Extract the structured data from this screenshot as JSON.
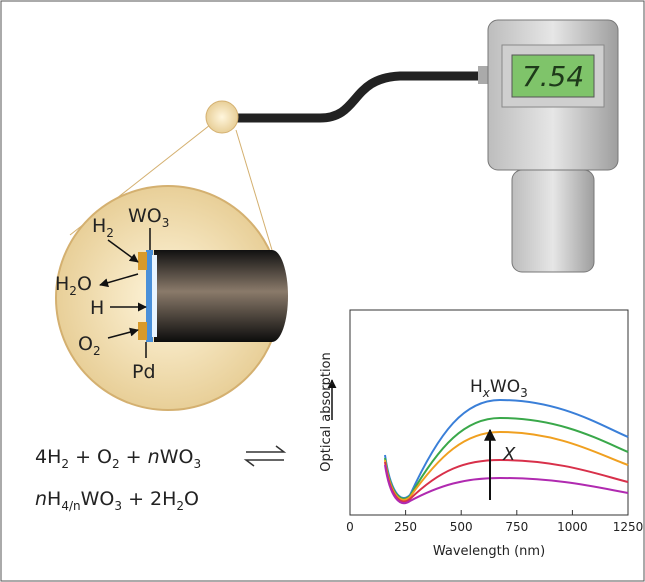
{
  "meter": {
    "reading": "7.54"
  },
  "sensor_labels": {
    "h2": [
      "H",
      "2"
    ],
    "wo3": [
      "WO",
      "3"
    ],
    "h2o": [
      "H",
      "2",
      "O"
    ],
    "h": "H",
    "o2": [
      "O",
      "2"
    ],
    "pd": "Pd"
  },
  "equation": {
    "line1": [
      "4H",
      "2",
      " + O",
      "2",
      " + ",
      "n",
      "WO",
      "3"
    ],
    "line2": [
      "n",
      "H",
      "4/n",
      "WO",
      "3",
      " + 2H",
      "2",
      "O"
    ]
  },
  "spectrum": {
    "y_label": "Optical absorption",
    "curve_label": [
      "H",
      "x",
      "WO",
      "3"
    ],
    "arrow_label": "X",
    "x_ticks": [
      "0",
      "250",
      "500",
      "750",
      "1000",
      "1250"
    ],
    "x_label": "Wavelength (nm)"
  }
}
